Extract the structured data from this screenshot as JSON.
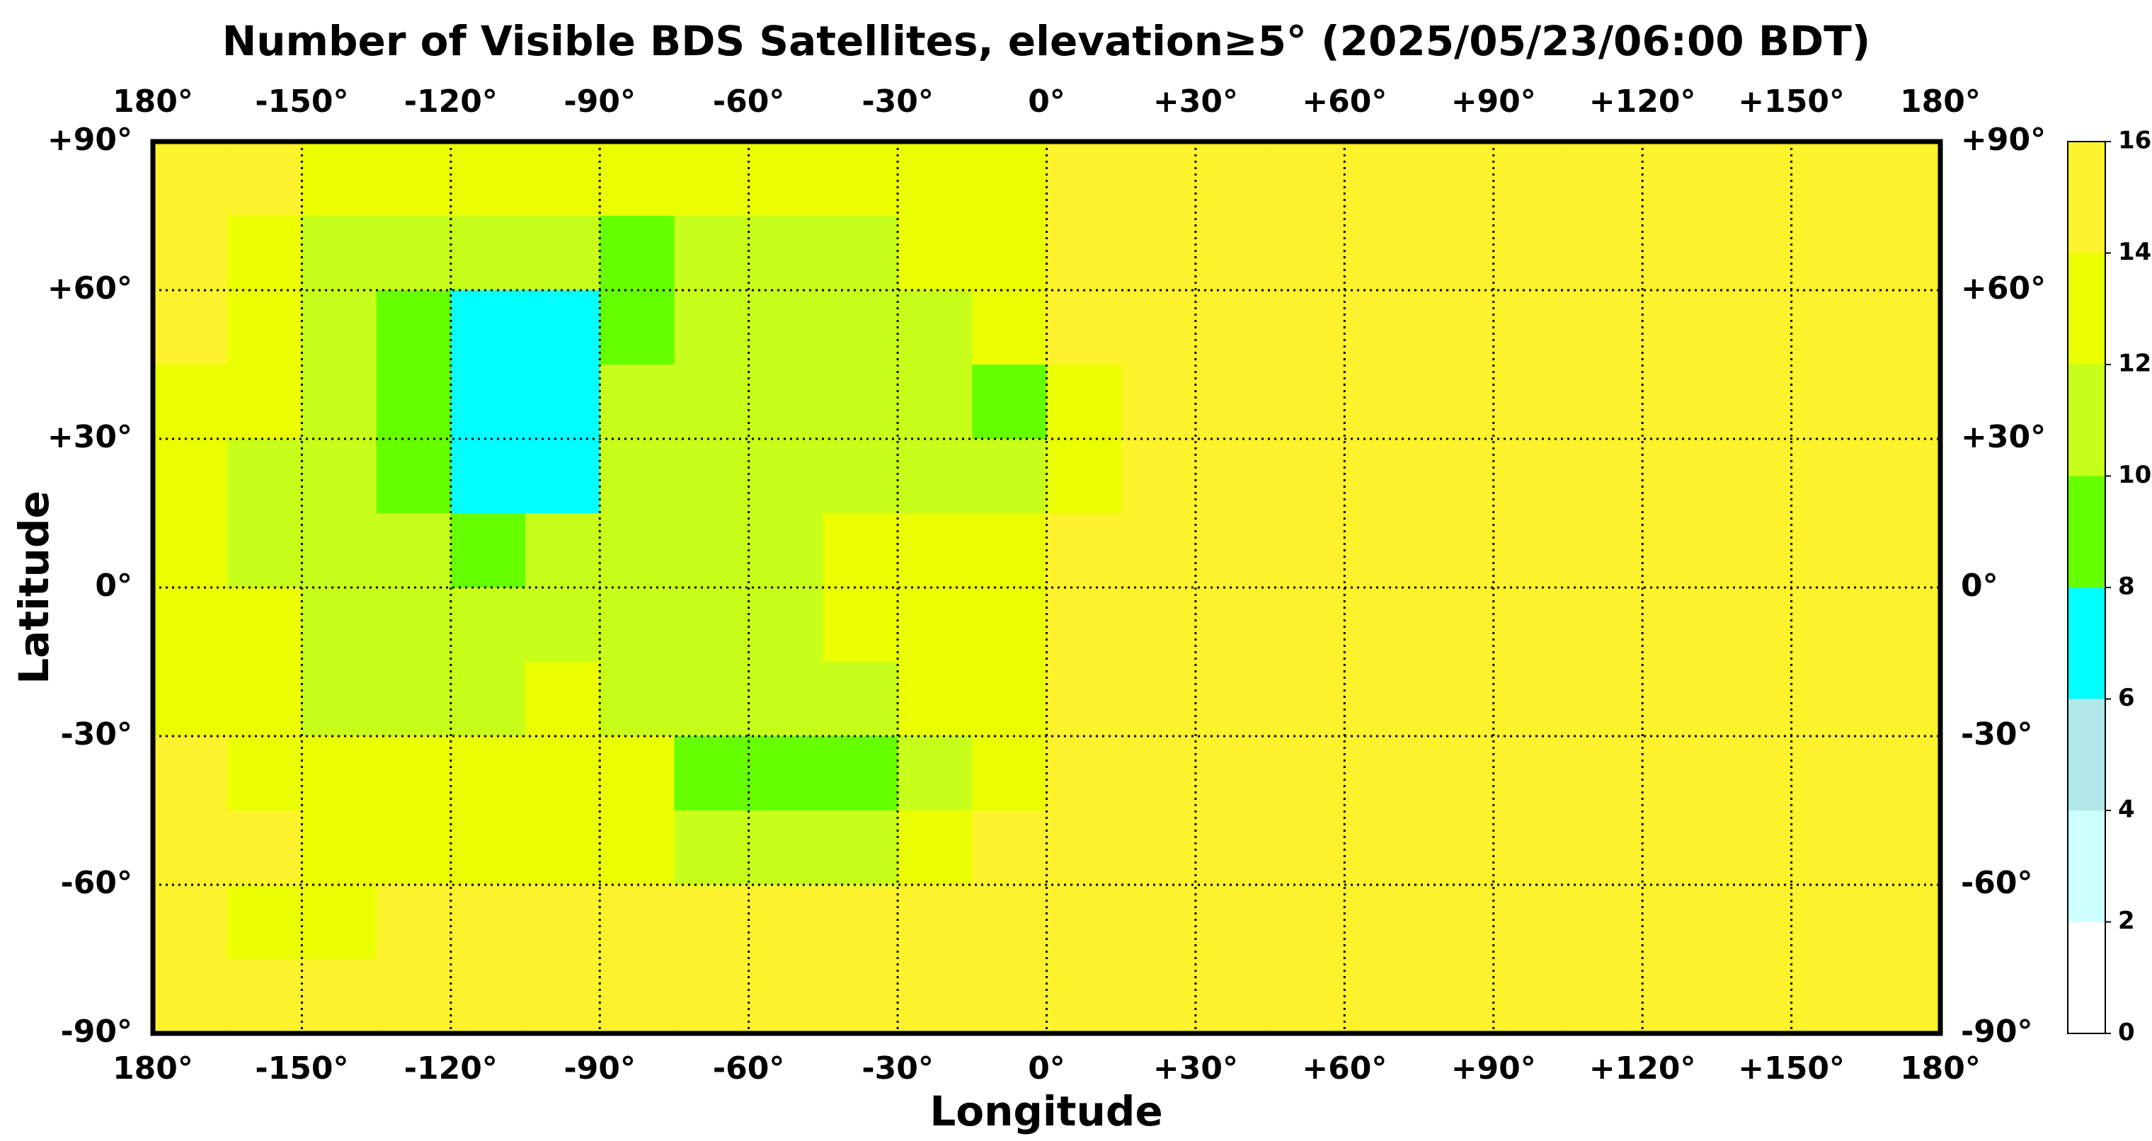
{
  "chart_data": {
    "type": "heatmap",
    "title": "Number of Visible BDS Satellites, elevation≥5° (2025/05/23/06:00 BDT)",
    "x_label": "Longitude",
    "y_label": "Latitude",
    "xlim": [
      -180,
      180
    ],
    "ylim": [
      -90,
      90
    ],
    "xticks": [
      {
        "value": -180,
        "label": "180°"
      },
      {
        "value": -150,
        "label": "-150°"
      },
      {
        "value": -120,
        "label": "-120°"
      },
      {
        "value": -90,
        "label": "-90°"
      },
      {
        "value": -60,
        "label": "-60°"
      },
      {
        "value": -30,
        "label": "-30°"
      },
      {
        "value": 0,
        "label": "0°"
      },
      {
        "value": 30,
        "label": "+30°"
      },
      {
        "value": 60,
        "label": "+60°"
      },
      {
        "value": 90,
        "label": "+90°"
      },
      {
        "value": 120,
        "label": "+120°"
      },
      {
        "value": 150,
        "label": "+150°"
      },
      {
        "value": 180,
        "label": "180°"
      }
    ],
    "yticks": [
      {
        "value": 90,
        "label": "+90°"
      },
      {
        "value": 60,
        "label": "+60°"
      },
      {
        "value": 30,
        "label": "+30°"
      },
      {
        "value": 0,
        "label": "0°"
      },
      {
        "value": -30,
        "label": "-30°"
      },
      {
        "value": -60,
        "label": "-60°"
      },
      {
        "value": -90,
        "label": "-90°"
      }
    ],
    "grid": true,
    "x": [
      -172.5,
      -157.5,
      -142.5,
      -127.5,
      -112.5,
      -97.5,
      -82.5,
      -67.5,
      -52.5,
      -37.5,
      -22.5,
      -7.5,
      7.5,
      22.5,
      37.5,
      52.5,
      67.5,
      82.5,
      97.5,
      112.5,
      127.5,
      142.5,
      157.5,
      172.5
    ],
    "y": [
      82.5,
      67.5,
      52.5,
      37.5,
      22.5,
      7.5,
      -7.5,
      -22.5,
      -37.5,
      -52.5,
      -67.5,
      -82.5
    ],
    "values": [
      [
        15,
        15,
        13,
        13,
        13,
        13,
        13,
        13,
        13,
        13,
        13,
        13,
        15,
        15,
        15,
        15,
        15,
        15,
        15,
        15,
        15,
        15,
        15,
        15
      ],
      [
        15,
        13,
        11,
        11,
        11,
        11,
        9,
        11,
        11,
        11,
        13,
        13,
        15,
        15,
        15,
        15,
        15,
        15,
        15,
        15,
        15,
        15,
        15,
        15
      ],
      [
        15,
        13,
        11,
        9,
        7,
        7,
        9,
        11,
        11,
        11,
        11,
        13,
        15,
        15,
        15,
        15,
        15,
        15,
        15,
        15,
        15,
        15,
        15,
        15
      ],
      [
        13,
        13,
        11,
        9,
        7,
        7,
        11,
        11,
        11,
        11,
        11,
        9,
        13,
        15,
        15,
        15,
        15,
        15,
        15,
        15,
        15,
        15,
        15,
        15
      ],
      [
        13,
        11,
        11,
        9,
        7,
        7,
        11,
        11,
        11,
        11,
        11,
        11,
        13,
        15,
        15,
        15,
        15,
        15,
        15,
        15,
        15,
        15,
        15,
        15
      ],
      [
        13,
        11,
        11,
        11,
        9,
        11,
        11,
        11,
        11,
        13,
        13,
        13,
        15,
        15,
        15,
        15,
        15,
        15,
        15,
        15,
        15,
        15,
        15,
        15
      ],
      [
        13,
        13,
        11,
        11,
        11,
        11,
        11,
        11,
        11,
        13,
        13,
        13,
        15,
        15,
        15,
        15,
        15,
        15,
        15,
        15,
        15,
        15,
        15,
        15
      ],
      [
        13,
        13,
        11,
        11,
        11,
        13,
        11,
        11,
        11,
        11,
        13,
        13,
        15,
        15,
        15,
        15,
        15,
        15,
        15,
        15,
        15,
        15,
        15,
        15
      ],
      [
        15,
        13,
        13,
        13,
        13,
        13,
        13,
        9,
        9,
        9,
        11,
        13,
        15,
        15,
        15,
        15,
        15,
        15,
        15,
        15,
        15,
        15,
        15,
        15
      ],
      [
        15,
        15,
        13,
        13,
        13,
        13,
        13,
        11,
        11,
        11,
        13,
        15,
        15,
        15,
        15,
        15,
        15,
        15,
        15,
        15,
        15,
        15,
        15,
        15
      ],
      [
        15,
        13,
        13,
        15,
        15,
        15,
        15,
        15,
        15,
        15,
        15,
        15,
        15,
        15,
        15,
        15,
        15,
        15,
        15,
        15,
        15,
        15,
        15,
        15
      ],
      [
        15,
        15,
        15,
        15,
        15,
        15,
        15,
        15,
        15,
        15,
        15,
        15,
        15,
        15,
        15,
        15,
        15,
        15,
        15,
        15,
        15,
        15,
        15,
        15
      ]
    ],
    "colorbar": {
      "levels": [
        0,
        2,
        4,
        6,
        8,
        10,
        12,
        14,
        16
      ],
      "colors": [
        "#ffffff",
        "#ccffff",
        "#b0e8e8",
        "#00ffff",
        "#66ff00",
        "#c8ff1a",
        "#eaff00",
        "#fdf22b"
      ],
      "ticks": [
        0,
        2,
        4,
        6,
        8,
        10,
        12,
        14,
        16
      ]
    }
  }
}
